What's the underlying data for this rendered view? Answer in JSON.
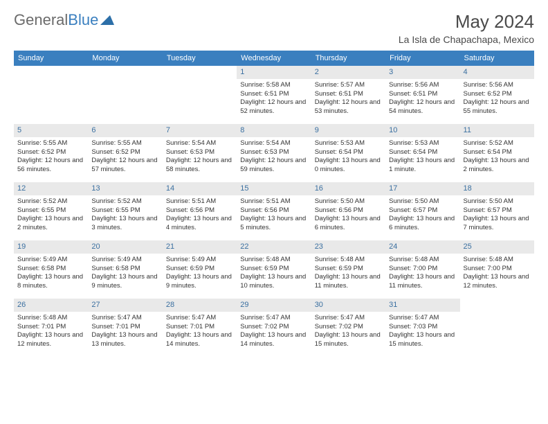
{
  "brand": {
    "part1": "General",
    "part2": "Blue"
  },
  "title": "May 2024",
  "subtitle": "La Isla de Chapachapa, Mexico",
  "colors": {
    "header_bg": "#3a7fbf",
    "header_fg": "#ffffff",
    "daynum_bg": "#e9e9e9",
    "daynum_fg": "#3a6fa0",
    "text": "#333333",
    "background": "#ffffff"
  },
  "typography": {
    "title_fontsize": 26,
    "subtitle_fontsize": 14,
    "body_fontsize": 9.5,
    "header_fontsize": 11
  },
  "columns": [
    "Sunday",
    "Monday",
    "Tuesday",
    "Wednesday",
    "Thursday",
    "Friday",
    "Saturday"
  ],
  "weeks": [
    [
      null,
      null,
      null,
      {
        "n": "1",
        "sr": "5:58 AM",
        "ss": "6:51 PM",
        "dl": "12 hours and 52 minutes."
      },
      {
        "n": "2",
        "sr": "5:57 AM",
        "ss": "6:51 PM",
        "dl": "12 hours and 53 minutes."
      },
      {
        "n": "3",
        "sr": "5:56 AM",
        "ss": "6:51 PM",
        "dl": "12 hours and 54 minutes."
      },
      {
        "n": "4",
        "sr": "5:56 AM",
        "ss": "6:52 PM",
        "dl": "12 hours and 55 minutes."
      }
    ],
    [
      {
        "n": "5",
        "sr": "5:55 AM",
        "ss": "6:52 PM",
        "dl": "12 hours and 56 minutes."
      },
      {
        "n": "6",
        "sr": "5:55 AM",
        "ss": "6:52 PM",
        "dl": "12 hours and 57 minutes."
      },
      {
        "n": "7",
        "sr": "5:54 AM",
        "ss": "6:53 PM",
        "dl": "12 hours and 58 minutes."
      },
      {
        "n": "8",
        "sr": "5:54 AM",
        "ss": "6:53 PM",
        "dl": "12 hours and 59 minutes."
      },
      {
        "n": "9",
        "sr": "5:53 AM",
        "ss": "6:54 PM",
        "dl": "13 hours and 0 minutes."
      },
      {
        "n": "10",
        "sr": "5:53 AM",
        "ss": "6:54 PM",
        "dl": "13 hours and 1 minute."
      },
      {
        "n": "11",
        "sr": "5:52 AM",
        "ss": "6:54 PM",
        "dl": "13 hours and 2 minutes."
      }
    ],
    [
      {
        "n": "12",
        "sr": "5:52 AM",
        "ss": "6:55 PM",
        "dl": "13 hours and 2 minutes."
      },
      {
        "n": "13",
        "sr": "5:52 AM",
        "ss": "6:55 PM",
        "dl": "13 hours and 3 minutes."
      },
      {
        "n": "14",
        "sr": "5:51 AM",
        "ss": "6:56 PM",
        "dl": "13 hours and 4 minutes."
      },
      {
        "n": "15",
        "sr": "5:51 AM",
        "ss": "6:56 PM",
        "dl": "13 hours and 5 minutes."
      },
      {
        "n": "16",
        "sr": "5:50 AM",
        "ss": "6:56 PM",
        "dl": "13 hours and 6 minutes."
      },
      {
        "n": "17",
        "sr": "5:50 AM",
        "ss": "6:57 PM",
        "dl": "13 hours and 6 minutes."
      },
      {
        "n": "18",
        "sr": "5:50 AM",
        "ss": "6:57 PM",
        "dl": "13 hours and 7 minutes."
      }
    ],
    [
      {
        "n": "19",
        "sr": "5:49 AM",
        "ss": "6:58 PM",
        "dl": "13 hours and 8 minutes."
      },
      {
        "n": "20",
        "sr": "5:49 AM",
        "ss": "6:58 PM",
        "dl": "13 hours and 9 minutes."
      },
      {
        "n": "21",
        "sr": "5:49 AM",
        "ss": "6:59 PM",
        "dl": "13 hours and 9 minutes."
      },
      {
        "n": "22",
        "sr": "5:48 AM",
        "ss": "6:59 PM",
        "dl": "13 hours and 10 minutes."
      },
      {
        "n": "23",
        "sr": "5:48 AM",
        "ss": "6:59 PM",
        "dl": "13 hours and 11 minutes."
      },
      {
        "n": "24",
        "sr": "5:48 AM",
        "ss": "7:00 PM",
        "dl": "13 hours and 11 minutes."
      },
      {
        "n": "25",
        "sr": "5:48 AM",
        "ss": "7:00 PM",
        "dl": "13 hours and 12 minutes."
      }
    ],
    [
      {
        "n": "26",
        "sr": "5:48 AM",
        "ss": "7:01 PM",
        "dl": "13 hours and 12 minutes."
      },
      {
        "n": "27",
        "sr": "5:47 AM",
        "ss": "7:01 PM",
        "dl": "13 hours and 13 minutes."
      },
      {
        "n": "28",
        "sr": "5:47 AM",
        "ss": "7:01 PM",
        "dl": "13 hours and 14 minutes."
      },
      {
        "n": "29",
        "sr": "5:47 AM",
        "ss": "7:02 PM",
        "dl": "13 hours and 14 minutes."
      },
      {
        "n": "30",
        "sr": "5:47 AM",
        "ss": "7:02 PM",
        "dl": "13 hours and 15 minutes."
      },
      {
        "n": "31",
        "sr": "5:47 AM",
        "ss": "7:03 PM",
        "dl": "13 hours and 15 minutes."
      },
      null
    ]
  ],
  "labels": {
    "sunrise": "Sunrise:",
    "sunset": "Sunset:",
    "daylight": "Daylight:"
  }
}
